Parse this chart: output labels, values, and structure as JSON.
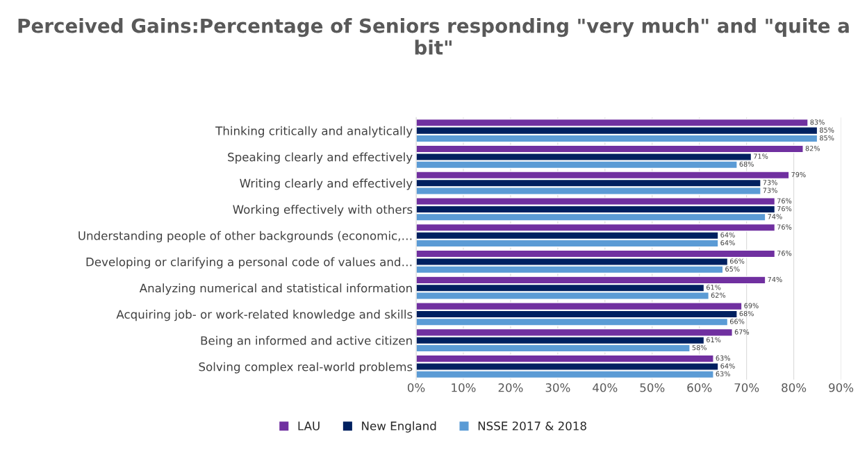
{
  "chart_data": {
    "type": "bar",
    "orientation": "horizontal",
    "title": "Perceived Gains:Percentage of Seniors responding \"very much\" and \"quite a bit\"",
    "categories": [
      "Thinking critically and analytically",
      "Speaking clearly and effectively",
      "Writing clearly and effectively",
      "Working effectively with others",
      "Understanding people of other backgrounds (economic,…",
      "Developing or clarifying a personal code of values and…",
      "Analyzing numerical and statistical information",
      "Acquiring job- or work-related knowledge and skills",
      "Being an informed and active citizen",
      "Solving complex real-world problems"
    ],
    "series": [
      {
        "name": "LAU",
        "color": "#7030a0",
        "values": [
          83,
          82,
          79,
          76,
          76,
          76,
          74,
          69,
          67,
          63
        ],
        "value_labels": [
          "83%",
          "82%",
          "79%",
          "76%",
          "76%",
          "76%",
          "74%",
          "69%",
          "67%",
          "63%"
        ]
      },
      {
        "name": "New England",
        "color": "#002060",
        "values": [
          85,
          71,
          73,
          76,
          64,
          66,
          61,
          68,
          61,
          64
        ],
        "value_labels": [
          "85%",
          "71%",
          "73%",
          "76%",
          "64%",
          "66%",
          "61%",
          "68%",
          "61%",
          "64%"
        ]
      },
      {
        "name": "NSSE 2017 & 2018",
        "color": "#5b9bd5",
        "values": [
          85,
          68,
          73,
          74,
          64,
          65,
          62,
          66,
          58,
          63
        ],
        "value_labels": [
          "85%",
          "68%",
          "73%",
          "74%",
          "64%",
          "65%",
          "62%",
          "66%",
          "58%",
          "63%"
        ]
      }
    ],
    "xlim": [
      0,
      90
    ],
    "xticks": [
      {
        "value": 0,
        "label": "0%"
      },
      {
        "value": 10,
        "label": "10%"
      },
      {
        "value": 20,
        "label": "20%"
      },
      {
        "value": 30,
        "label": "30%"
      },
      {
        "value": 40,
        "label": "40%"
      },
      {
        "value": 50,
        "label": "50%"
      },
      {
        "value": 60,
        "label": "60%"
      },
      {
        "value": 70,
        "label": "70%"
      },
      {
        "value": 80,
        "label": "80%"
      },
      {
        "value": 90,
        "label": "90%"
      }
    ],
    "grid": "x",
    "legend": "bottom"
  }
}
